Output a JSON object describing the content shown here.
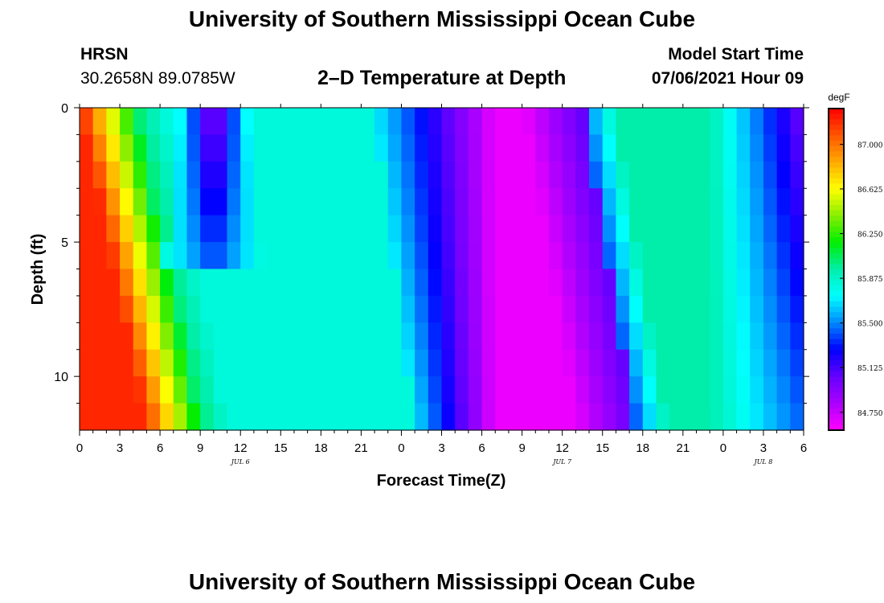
{
  "header": {
    "title": "University of Southern Mississippi Ocean Cube",
    "station_name": "HRSN",
    "station_coords": "30.2658N  89.0785W",
    "plot_title": "2–D Temperature at Depth",
    "model_start_label": "Model Start Time",
    "model_start_value": "07/06/2021 Hour 09"
  },
  "footer": {
    "title": "University of Southern Mississippi Ocean Cube"
  },
  "chart_data": {
    "type": "heatmap",
    "title": "2–D Temperature at Depth",
    "xlabel": "Forecast Time(Z)",
    "ylabel": "Depth (ft)",
    "x_range_hours": [
      0,
      54
    ],
    "x_tick_labels": [
      "0",
      "3",
      "6",
      "9",
      "12",
      "15",
      "18",
      "21",
      "0",
      "3",
      "6",
      "9",
      "12",
      "15",
      "18",
      "21",
      "0",
      "3",
      "6"
    ],
    "date_labels": [
      {
        "hour": 12,
        "text": "JUL 6"
      },
      {
        "hour": 36,
        "text": "JUL 7"
      },
      {
        "hour": 51,
        "text": "JUL 8"
      }
    ],
    "y_range_ft": [
      0,
      12
    ],
    "y_major_ticks": [
      0,
      5,
      10
    ],
    "y_minor_ticks": [
      1,
      2,
      3,
      4,
      6,
      7,
      8,
      9,
      11
    ],
    "units": "degF",
    "colorbar_ticks": [
      "87.000",
      "86.625",
      "86.250",
      "85.875",
      "85.500",
      "85.125",
      "84.750"
    ],
    "colorbar_range": [
      84.6,
      87.3
    ],
    "colorbar_colors": [
      "#ff0000",
      "#ff5500",
      "#ffaa00",
      "#ffff00",
      "#88ee00",
      "#00ee00",
      "#00eeaa",
      "#00ffff",
      "#0088ff",
      "#0000ff",
      "#6600ff",
      "#aa00ff",
      "#ff00ff"
    ],
    "heat_model": {
      "depth_layers": 12,
      "time_columns": 54,
      "features": [
        {
          "name": "warm-early",
          "hour_start": 0,
          "hour_end_surface": 4,
          "hour_end_bottom": 9,
          "max_degF": 87.2
        },
        {
          "name": "cool-pocket",
          "center_hour": 10,
          "surface_depth_ft": 0,
          "bottom_depth_ft": 6,
          "min_degF": 85.0
        },
        {
          "name": "cold-minimum",
          "center_hour": 33,
          "min_degF": 84.65
        },
        {
          "name": "cool-front",
          "hour_surface": 37,
          "hour_bottom": 41
        },
        {
          "name": "cooling-late",
          "hour_start": 49,
          "hour_end": 54,
          "min_degF": 85.0
        }
      ]
    }
  }
}
